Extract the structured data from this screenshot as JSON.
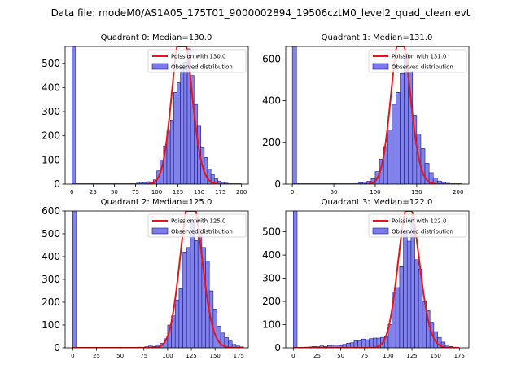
{
  "suptitle": "Data file: modeM0/AS1A05_175T01_9000002894_19506cztM0_level2_quad_clean.evt",
  "chart_data": [
    {
      "type": "bar+line",
      "title": "Quadrant 0: Median=130.0",
      "xlim": [
        -8,
        208
      ],
      "ylim": [
        0,
        570
      ],
      "xticks": [
        0,
        25,
        50,
        75,
        100,
        125,
        150,
        175,
        200
      ],
      "yticks": [
        0,
        100,
        200,
        300,
        400,
        500
      ],
      "bin_width": 4,
      "hist": [
        [
          0,
          570
        ],
        [
          76,
          4
        ],
        [
          80,
          8
        ],
        [
          84,
          7
        ],
        [
          88,
          10
        ],
        [
          92,
          9
        ],
        [
          96,
          18
        ],
        [
          100,
          55
        ],
        [
          104,
          100
        ],
        [
          108,
          158
        ],
        [
          112,
          220
        ],
        [
          116,
          265
        ],
        [
          120,
          380
        ],
        [
          124,
          420
        ],
        [
          128,
          500
        ],
        [
          132,
          505
        ],
        [
          136,
          560
        ],
        [
          140,
          450
        ],
        [
          144,
          330
        ],
        [
          148,
          240
        ],
        [
          152,
          150
        ],
        [
          156,
          110
        ],
        [
          160,
          62
        ],
        [
          164,
          40
        ],
        [
          168,
          22
        ],
        [
          172,
          12
        ],
        [
          176,
          7
        ],
        [
          180,
          4
        ],
        [
          184,
          2
        ]
      ],
      "poisson_mean": 130.0,
      "curve_range": [
        0,
        200
      ],
      "legend": {
        "line": "Poission with 130.0",
        "bars": "Observed distribution"
      }
    },
    {
      "type": "bar+line",
      "title": "Quadrant 1: Median=131.0",
      "xlim": [
        -8,
        213
      ],
      "ylim": [
        0,
        660
      ],
      "xticks": [
        0,
        50,
        100,
        150,
        200
      ],
      "yticks": [
        0,
        200,
        400,
        600
      ],
      "bin_width": 5,
      "hist": [
        [
          0,
          660
        ],
        [
          75,
          3
        ],
        [
          80,
          7
        ],
        [
          85,
          10
        ],
        [
          90,
          14
        ],
        [
          95,
          26
        ],
        [
          100,
          60
        ],
        [
          105,
          120
        ],
        [
          110,
          180
        ],
        [
          115,
          260
        ],
        [
          120,
          380
        ],
        [
          125,
          440
        ],
        [
          130,
          530
        ],
        [
          135,
          625
        ],
        [
          140,
          540
        ],
        [
          145,
          330
        ],
        [
          150,
          240
        ],
        [
          155,
          170
        ],
        [
          160,
          100
        ],
        [
          165,
          55
        ],
        [
          170,
          30
        ],
        [
          175,
          15
        ],
        [
          180,
          8
        ],
        [
          185,
          4
        ]
      ],
      "poisson_mean": 131.0,
      "curve_range": [
        0,
        205
      ],
      "legend": {
        "line": "Poission with 131.0",
        "bars": "Observed distribution"
      }
    },
    {
      "type": "bar+line",
      "title": "Quadrant 2: Median=125.0",
      "xlim": [
        -8,
        185
      ],
      "ylim": [
        0,
        600
      ],
      "xticks": [
        0,
        25,
        50,
        75,
        100,
        125,
        150,
        175
      ],
      "yticks": [
        0,
        100,
        200,
        300,
        400,
        500,
        600
      ],
      "bin_width": 4,
      "hist": [
        [
          0,
          600
        ],
        [
          60,
          2
        ],
        [
          68,
          3
        ],
        [
          76,
          5
        ],
        [
          80,
          8
        ],
        [
          84,
          6
        ],
        [
          88,
          12
        ],
        [
          92,
          20
        ],
        [
          96,
          40
        ],
        [
          100,
          100
        ],
        [
          104,
          140
        ],
        [
          108,
          210
        ],
        [
          112,
          260
        ],
        [
          116,
          420
        ],
        [
          120,
          440
        ],
        [
          124,
          560
        ],
        [
          128,
          470
        ],
        [
          132,
          520
        ],
        [
          136,
          440
        ],
        [
          140,
          380
        ],
        [
          144,
          250
        ],
        [
          148,
          170
        ],
        [
          152,
          95
        ],
        [
          156,
          65
        ],
        [
          160,
          45
        ],
        [
          164,
          30
        ],
        [
          168,
          15
        ],
        [
          172,
          8
        ],
        [
          176,
          4
        ]
      ],
      "poisson_mean": 125.0,
      "curve_range": [
        0,
        180
      ],
      "legend": {
        "line": "Poission with 125.0",
        "bars": "Observed distribution"
      }
    },
    {
      "type": "bar+line",
      "title": "Quadrant 3: Median=122.0",
      "xlim": [
        -8,
        185
      ],
      "ylim": [
        0,
        590
      ],
      "xticks": [
        0,
        25,
        50,
        75,
        100,
        125,
        150,
        175
      ],
      "yticks": [
        0,
        100,
        200,
        300,
        400,
        500
      ],
      "bin_width": 4,
      "hist": [
        [
          0,
          590
        ],
        [
          12,
          3
        ],
        [
          16,
          4
        ],
        [
          20,
          6
        ],
        [
          24,
          5
        ],
        [
          28,
          8
        ],
        [
          32,
          6
        ],
        [
          36,
          10
        ],
        [
          40,
          8
        ],
        [
          44,
          12
        ],
        [
          48,
          10
        ],
        [
          52,
          15
        ],
        [
          56,
          20
        ],
        [
          60,
          22
        ],
        [
          64,
          30
        ],
        [
          68,
          30
        ],
        [
          72,
          38
        ],
        [
          76,
          35
        ],
        [
          80,
          40
        ],
        [
          84,
          42
        ],
        [
          88,
          42
        ],
        [
          92,
          45
        ],
        [
          96,
          50
        ],
        [
          100,
          100
        ],
        [
          104,
          240
        ],
        [
          108,
          260
        ],
        [
          112,
          350
        ],
        [
          116,
          500
        ],
        [
          120,
          460
        ],
        [
          124,
          560
        ],
        [
          128,
          380
        ],
        [
          132,
          340
        ],
        [
          136,
          200
        ],
        [
          140,
          160
        ],
        [
          144,
          110
        ],
        [
          148,
          70
        ],
        [
          152,
          45
        ],
        [
          156,
          25
        ],
        [
          160,
          12
        ],
        [
          164,
          6
        ],
        [
          168,
          3
        ]
      ],
      "poisson_mean": 122.0,
      "curve_range": [
        0,
        175
      ],
      "legend": {
        "line": "Poission with 122.0",
        "bars": "Observed distribution"
      }
    }
  ]
}
